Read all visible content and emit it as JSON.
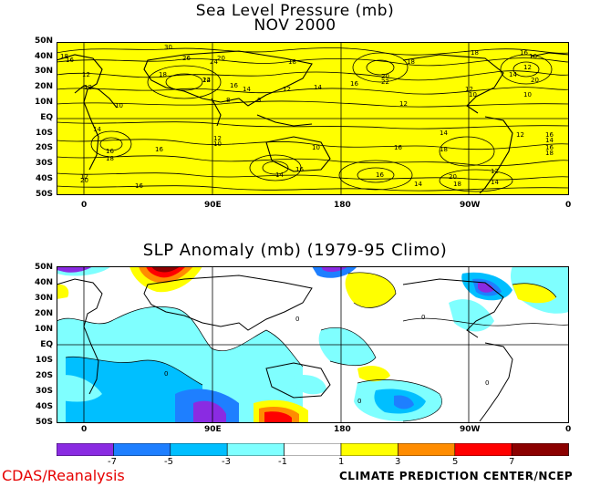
{
  "panel1": {
    "title_line1": "Sea Level Pressure (mb)",
    "title_line2": "NOV 2000",
    "lat_labels": [
      "50N",
      "40N",
      "30N",
      "20N",
      "10N",
      "EQ",
      "10S",
      "20S",
      "30S",
      "40S",
      "50S"
    ],
    "lon_labels": [
      "0",
      "90E",
      "180",
      "90W",
      "0"
    ],
    "fill_color": "#ffff00",
    "contour_labels": [
      "18",
      "16",
      "30",
      "26",
      "24",
      "22",
      "20",
      "18",
      "14",
      "12",
      "10",
      "8",
      "14",
      "16",
      "18",
      "12",
      "16",
      "20",
      "22",
      "12",
      "10",
      "8",
      "18",
      "12",
      "14",
      "12",
      "14",
      "16",
      "10",
      "12",
      "16",
      "14",
      "18",
      "20",
      "14",
      "10",
      "12",
      "16",
      "18",
      "14",
      "12",
      "20",
      "16",
      "18",
      "16",
      "14",
      "12",
      "16",
      "12",
      "14",
      "16",
      "18",
      "12",
      "10",
      "16",
      "20",
      "14",
      "16",
      "18"
    ]
  },
  "panel2": {
    "title": "SLP Anomaly (mb) (1979-95 Climo)",
    "lat_labels": [
      "50N",
      "40N",
      "30N",
      "20N",
      "10N",
      "EQ",
      "10S",
      "20S",
      "30S",
      "40S",
      "50S"
    ],
    "lon_labels": [
      "0",
      "90E",
      "180",
      "90W",
      "0"
    ],
    "contour_label": "0"
  },
  "colorbar": {
    "ticks": [
      "-7",
      "-5",
      "-3",
      "-1",
      "1",
      "3",
      "5",
      "7"
    ],
    "colors": [
      "#8a2be2",
      "#1e7fff",
      "#00bfff",
      "#7fffff",
      "#ffffff",
      "#ffff00",
      "#ff8c00",
      "#ff0000",
      "#8b0000"
    ]
  },
  "credits": {
    "left": "CDAS/Reanalysis",
    "right": "CLIMATE PREDICTION CENTER/NCEP"
  }
}
